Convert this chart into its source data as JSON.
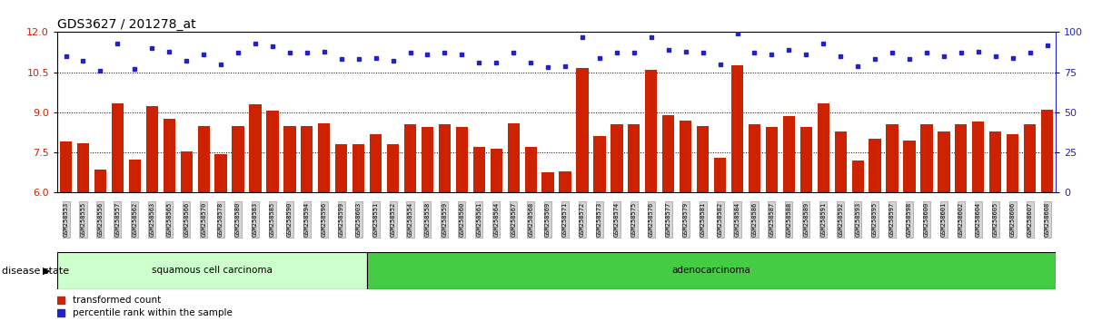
{
  "title": "GDS3627 / 201278_at",
  "samples": [
    "GSM258553",
    "GSM258555",
    "GSM258556",
    "GSM258557",
    "GSM258562",
    "GSM258563",
    "GSM258565",
    "GSM258566",
    "GSM258570",
    "GSM258578",
    "GSM258580",
    "GSM258583",
    "GSM258585",
    "GSM258590",
    "GSM258594",
    "GSM258596",
    "GSM258599",
    "GSM258603",
    "GSM258551",
    "GSM258552",
    "GSM258554",
    "GSM258558",
    "GSM258559",
    "GSM258560",
    "GSM258561",
    "GSM258564",
    "GSM258567",
    "GSM258568",
    "GSM258569",
    "GSM258571",
    "GSM258572",
    "GSM258573",
    "GSM258574",
    "GSM258575",
    "GSM258576",
    "GSM258577",
    "GSM258579",
    "GSM258581",
    "GSM258582",
    "GSM258584",
    "GSM258586",
    "GSM258587",
    "GSM258588",
    "GSM258589",
    "GSM258591",
    "GSM258592",
    "GSM258593",
    "GSM258595",
    "GSM258597",
    "GSM258598",
    "GSM258600",
    "GSM258601",
    "GSM258602",
    "GSM258604",
    "GSM258605",
    "GSM258606",
    "GSM258607",
    "GSM258608"
  ],
  "bar_values": [
    7.9,
    7.85,
    6.85,
    9.35,
    7.25,
    9.25,
    8.75,
    7.55,
    8.5,
    7.45,
    8.5,
    9.3,
    9.05,
    8.5,
    8.5,
    8.6,
    7.8,
    7.8,
    8.2,
    7.8,
    8.55,
    8.45,
    8.55,
    8.45,
    7.7,
    7.65,
    8.6,
    7.7,
    6.75,
    6.8,
    10.65,
    8.1,
    8.55,
    8.55,
    10.6,
    8.9,
    8.7,
    8.5,
    7.3,
    10.75,
    8.55,
    8.45,
    8.85,
    8.45,
    9.35,
    8.3,
    7.2,
    8.0,
    8.55,
    7.95,
    8.55,
    8.3,
    8.55,
    8.65,
    8.3,
    8.2,
    8.55,
    9.1
  ],
  "dot_values": [
    85,
    82,
    76,
    93,
    77,
    90,
    88,
    82,
    86,
    80,
    87,
    93,
    91,
    87,
    87,
    88,
    83,
    83,
    84,
    82,
    87,
    86,
    87,
    86,
    81,
    81,
    87,
    81,
    78,
    79,
    97,
    84,
    87,
    87,
    97,
    89,
    88,
    87,
    80,
    99,
    87,
    86,
    89,
    86,
    93,
    85,
    79,
    83,
    87,
    83,
    87,
    85,
    87,
    88,
    85,
    84,
    87,
    92
  ],
  "squamous_count": 18,
  "ylim_left": [
    6.0,
    12.0
  ],
  "ylim_right": [
    0,
    100
  ],
  "yticks_left": [
    6,
    7.5,
    9,
    10.5,
    12
  ],
  "yticks_right": [
    0,
    25,
    50,
    75,
    100
  ],
  "bar_color": "#cc2200",
  "dot_color": "#2222cc",
  "squamous_color": "#ccffcc",
  "adenocarcinoma_color": "#44cc44",
  "label_bg_color": "#d4d4d4",
  "legend_bar_label": "transformed count",
  "legend_dot_label": "percentile rank within the sample",
  "disease_state_label": "disease state",
  "squamous_label": "squamous cell carcinoma",
  "adeno_label": "adenocarcinoma",
  "title_fontsize": 10,
  "axis_label_fontsize": 8,
  "sample_label_fontsize": 5
}
